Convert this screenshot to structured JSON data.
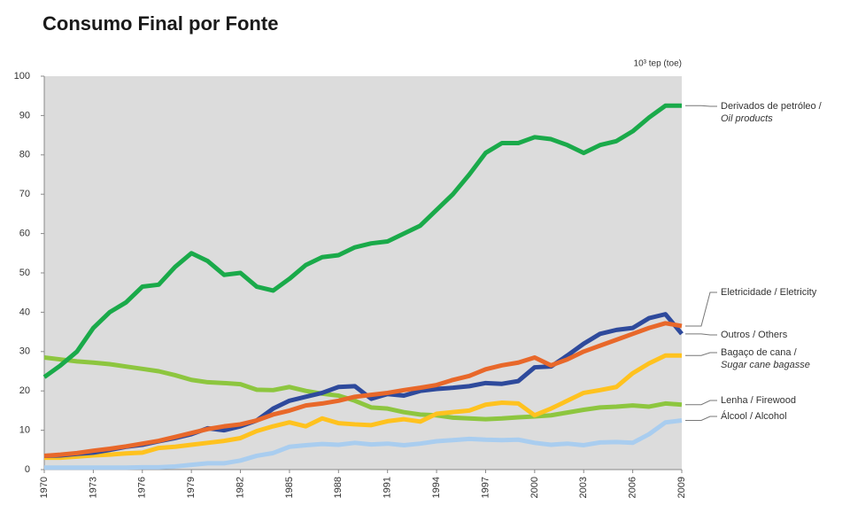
{
  "chart_data": {
    "type": "line",
    "title": "Consumo Final por Fonte",
    "unit_label": "10³ tep (toe)",
    "x": [
      1970,
      1971,
      1972,
      1973,
      1974,
      1975,
      1976,
      1977,
      1978,
      1979,
      1980,
      1981,
      1982,
      1983,
      1984,
      1985,
      1986,
      1987,
      1988,
      1989,
      1990,
      1991,
      1992,
      1993,
      1994,
      1995,
      1996,
      1997,
      1998,
      1999,
      2000,
      2001,
      2002,
      2003,
      2004,
      2005,
      2006,
      2007,
      2008,
      2009
    ],
    "xlim": [
      1970,
      2009
    ],
    "xticks": [
      1970,
      1973,
      1976,
      1979,
      1982,
      1985,
      1988,
      1991,
      1994,
      1997,
      2000,
      2003,
      2006,
      2009
    ],
    "ylim": [
      0,
      100
    ],
    "yticks": [
      0,
      10,
      20,
      30,
      40,
      50,
      60,
      70,
      80,
      90,
      100
    ],
    "grid": false,
    "series": [
      {
        "name": "Derivados de petróleo / Oil products",
        "color": "#1aaa4a",
        "values": [
          23.5,
          26.5,
          30,
          36,
          40,
          42.5,
          46.5,
          47,
          51.5,
          55,
          53,
          49.5,
          50,
          46.5,
          45.5,
          48.5,
          52,
          54,
          54.5,
          56.5,
          57.5,
          58,
          60,
          62,
          66,
          70,
          75,
          80.5,
          83,
          83,
          84.5,
          84,
          82.5,
          80.5,
          82.5,
          83.5,
          86,
          89.5,
          92.5,
          92.5
        ]
      },
      {
        "name": "Eletricidade / Eletricity",
        "color": "#e8682a",
        "values": [
          3.5,
          3.8,
          4.2,
          4.8,
          5.3,
          5.9,
          6.6,
          7.3,
          8.3,
          9.3,
          10.3,
          11,
          11.5,
          12.5,
          14,
          15,
          16.3,
          16.8,
          17.5,
          18.5,
          19,
          19.5,
          20.2,
          20.8,
          21.5,
          22.8,
          23.8,
          25.5,
          26.5,
          27.2,
          28.5,
          26.5,
          28,
          30,
          31.5,
          33,
          34.5,
          36,
          37.2,
          36.5
        ]
      },
      {
        "name": "Outros / Others",
        "color": "#2e4a9c",
        "values": [
          3.5,
          3.6,
          4,
          4.3,
          5,
          5.8,
          6.3,
          7.2,
          8,
          9,
          10.5,
          10,
          11,
          12.5,
          15.5,
          17.5,
          18.5,
          19.5,
          21,
          21.2,
          18,
          19.2,
          18.8,
          20,
          20.5,
          20.8,
          21.2,
          22,
          21.8,
          22.5,
          26,
          26.2,
          29,
          32,
          34.5,
          35.5,
          36,
          38.5,
          39.5,
          34.5
        ]
      },
      {
        "name": "Bagaço de cana / Sugar cane bagasse",
        "color": "#ffc21f",
        "values": [
          3,
          3,
          3.3,
          3.6,
          3.8,
          4.1,
          4.3,
          5.5,
          5.8,
          6.3,
          6.8,
          7.3,
          8,
          9.8,
          11,
          12,
          11,
          13,
          11.8,
          11.5,
          11.3,
          12.3,
          12.8,
          12.2,
          14.2,
          14.6,
          15,
          16.5,
          17,
          16.8,
          13.8,
          15.5,
          17.5,
          19.5,
          20.2,
          21,
          24.5,
          27,
          29,
          29
        ]
      },
      {
        "name": "Lenha / Firewood",
        "color": "#8dc63f",
        "values": [
          28.5,
          28,
          27.5,
          27.2,
          26.8,
          26.2,
          25.6,
          25,
          24,
          22.8,
          22.2,
          22,
          21.7,
          20.3,
          20.2,
          21,
          20,
          19.3,
          18.8,
          17.5,
          15.8,
          15.5,
          14.6,
          14,
          13.8,
          13.2,
          13,
          12.8,
          13,
          13.3,
          13.5,
          13.8,
          14.5,
          15.2,
          15.8,
          16,
          16.3,
          16,
          16.8,
          16.5
        ]
      },
      {
        "name": "Álcool / Alcohol",
        "color": "#a9cdef",
        "values": [
          0.5,
          0.5,
          0.5,
          0.5,
          0.5,
          0.5,
          0.6,
          0.6,
          0.8,
          1.2,
          1.6,
          1.6,
          2.3,
          3.5,
          4.2,
          5.8,
          6.2,
          6.5,
          6.3,
          6.8,
          6.4,
          6.6,
          6.2,
          6.6,
          7.2,
          7.5,
          7.8,
          7.6,
          7.5,
          7.6,
          6.8,
          6.3,
          6.6,
          6.2,
          6.9,
          7,
          6.8,
          9,
          12,
          12.5
        ]
      }
    ]
  }
}
